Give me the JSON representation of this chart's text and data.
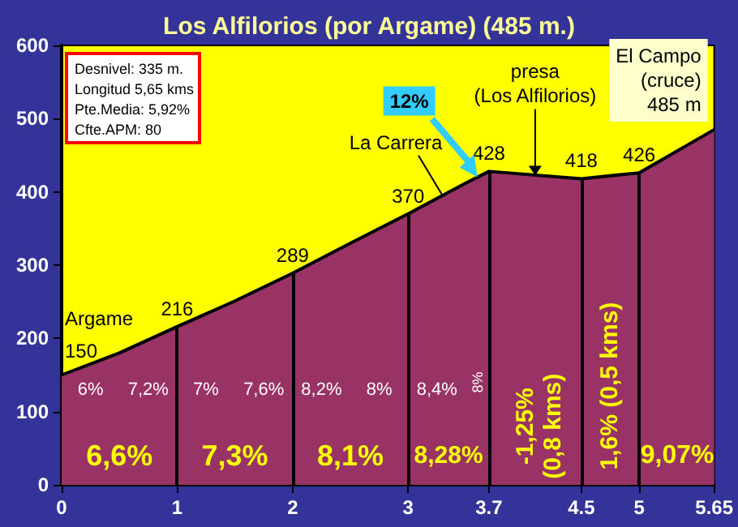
{
  "chart_data": {
    "type": "area",
    "title": "Los Alfilorios (por Argame) (485 m.)",
    "x": [
      0,
      0.5,
      1,
      1.5,
      2,
      2.5,
      3,
      3.5,
      3.7,
      4.5,
      5,
      5.65
    ],
    "series": [
      {
        "color": "#993366",
        "values": [
          150,
          180,
          216,
          251,
          289,
          330,
          370,
          412,
          428,
          418,
          426,
          485
        ],
        "value_labels": [
          "150",
          null,
          "216",
          null,
          "289",
          null,
          "370",
          null,
          "428",
          "418",
          "426",
          null
        ]
      }
    ],
    "xlim": [
      0,
      5.65
    ],
    "xticks": [
      0,
      1,
      2,
      3,
      3.7,
      4.5,
      5,
      5.65
    ],
    "ylim": [
      0,
      600
    ],
    "yticks": [
      0,
      100,
      200,
      300,
      400,
      500,
      600
    ],
    "ref_lines": [
      {
        "axis": "x",
        "value": 1,
        "color": "#000000"
      },
      {
        "axis": "x",
        "value": 2,
        "color": "#000000"
      },
      {
        "axis": "x",
        "value": 3,
        "color": "#000000"
      },
      {
        "axis": "x",
        "value": 3.7,
        "color": "#000000"
      },
      {
        "axis": "x",
        "value": 4.5,
        "color": "#000000"
      },
      {
        "axis": "x",
        "value": 5,
        "color": "#000000"
      }
    ],
    "annotations": [
      "Desnivel: 335 m.",
      "Longitud 5,65 kms",
      "Pte.Media: 5,92%",
      "Cfte.APM: 80",
      {
        "text": "Argame",
        "x": 0,
        "y": 150
      },
      {
        "text": "La Carrera",
        "x": 3.3,
        "y": 390
      },
      {
        "text": "presa\n(Los Alfilorios)",
        "x": 4.1,
        "y": 420
      },
      {
        "text": "El Campo\n(cruce)\n485 m",
        "x": 5.65,
        "y": 485
      },
      "12%",
      "6%",
      "7,2%",
      "7%",
      "7,6%",
      "8,2%",
      "8%",
      "8,4%",
      "8%",
      "6,6%",
      "7,3%",
      "8,1%",
      "8,28%",
      "-1,25%\n(0,8 kms)",
      "1,6% (0,5 kms)",
      "9,07%"
    ]
  }
}
